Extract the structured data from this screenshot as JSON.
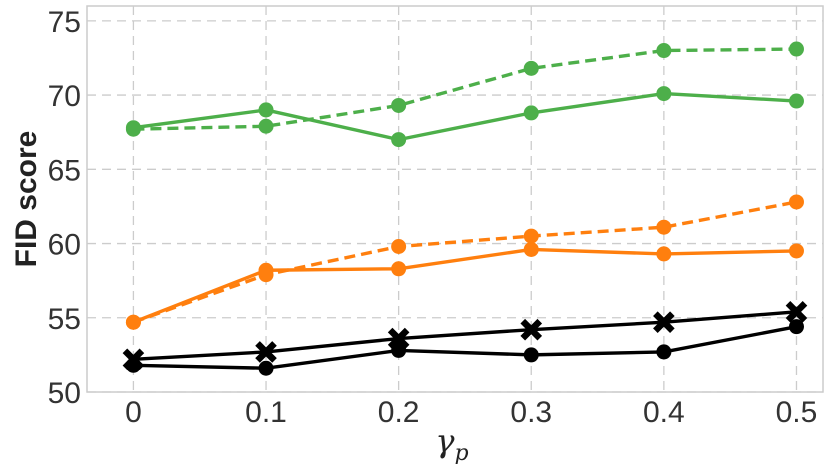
{
  "chart_data": {
    "type": "line",
    "title": "",
    "xlabel": "γ",
    "xlabel_subscript": "p",
    "ylabel": "FID score",
    "x": [
      0,
      0.1,
      0.2,
      0.3,
      0.4,
      0.5
    ],
    "x_tick_labels": [
      "0",
      "0.1",
      "0.2",
      "0.3",
      "0.4",
      "0.5"
    ],
    "xlim": [
      -0.035,
      0.52
    ],
    "ylim": [
      50,
      76
    ],
    "y_ticks": [
      50,
      55,
      60,
      65,
      70,
      75
    ],
    "y_tick_labels": [
      "50",
      "55",
      "60",
      "65",
      "70",
      "75"
    ],
    "grid": true,
    "series": [
      {
        "name": "green-dashed",
        "color": "#4daf4a",
        "linestyle": "dashed",
        "marker": "circle",
        "values": [
          67.7,
          67.9,
          69.3,
          71.8,
          73.0,
          73.1
        ]
      },
      {
        "name": "green-solid",
        "color": "#4daf4a",
        "linestyle": "solid",
        "marker": "circle",
        "values": [
          67.8,
          69.0,
          67.0,
          68.8,
          70.1,
          69.6
        ]
      },
      {
        "name": "orange-dashed",
        "color": "#ff7f0e",
        "linestyle": "dashed",
        "marker": "circle",
        "values": [
          54.7,
          57.9,
          59.8,
          60.5,
          61.1,
          62.8
        ]
      },
      {
        "name": "orange-solid",
        "color": "#ff7f0e",
        "linestyle": "solid",
        "marker": "circle",
        "values": [
          54.7,
          58.2,
          58.3,
          59.6,
          59.3,
          59.5
        ]
      },
      {
        "name": "black-cross",
        "color": "#000000",
        "linestyle": "solid",
        "marker": "x",
        "values": [
          52.2,
          52.7,
          53.6,
          54.2,
          54.7,
          55.4
        ]
      },
      {
        "name": "black-circle",
        "color": "#000000",
        "linestyle": "solid",
        "marker": "circle",
        "values": [
          51.8,
          51.6,
          52.8,
          52.5,
          52.7,
          54.4
        ]
      }
    ]
  }
}
